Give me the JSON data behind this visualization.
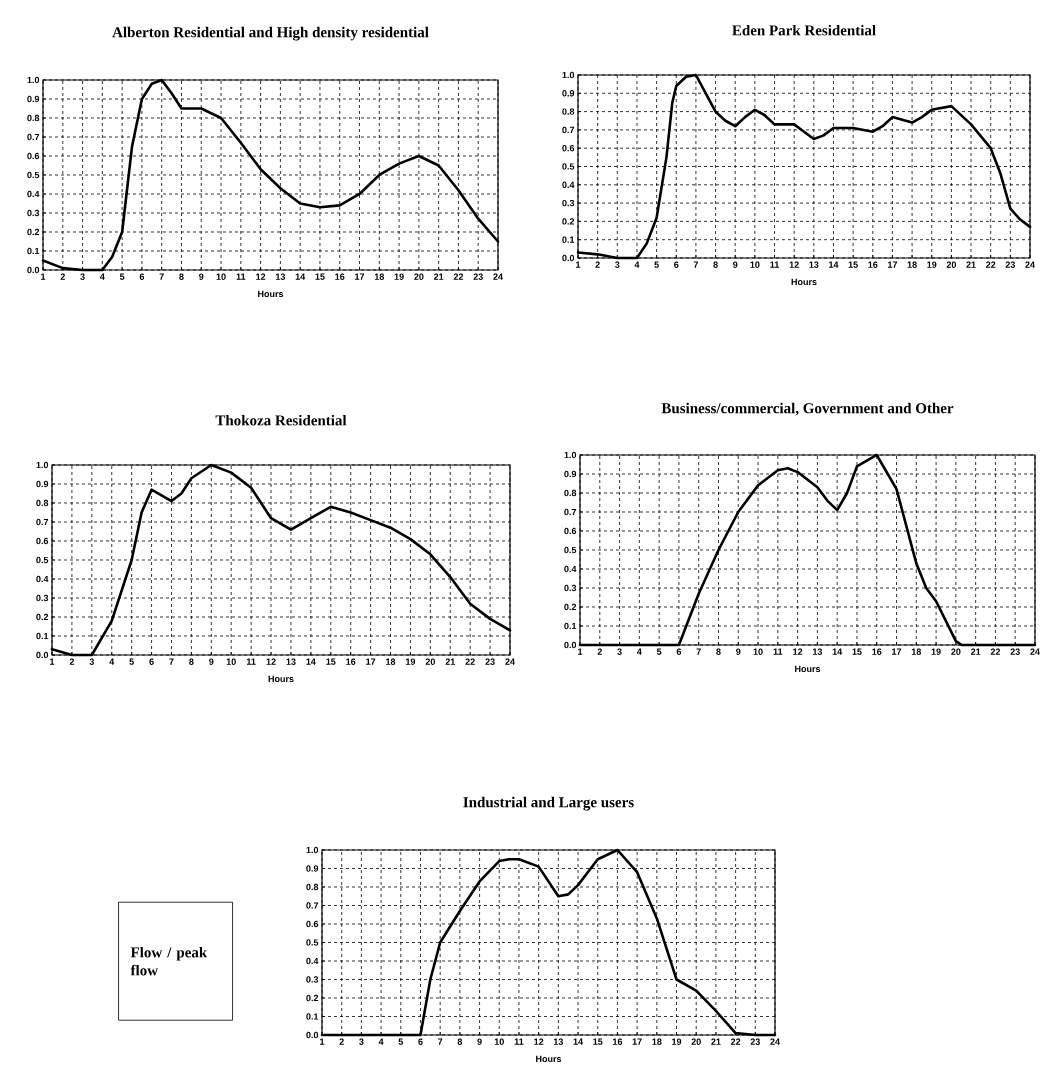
{
  "chart_data": [
    {
      "type": "line",
      "title": "Alberton Residential and High density residential",
      "xlabel": "Hours",
      "grid": true,
      "xlim": [
        1,
        24
      ],
      "ylim": [
        0,
        1
      ],
      "xticks": [
        1,
        2,
        3,
        4,
        5,
        6,
        7,
        8,
        9,
        10,
        11,
        12,
        13,
        14,
        15,
        16,
        17,
        18,
        19,
        20,
        21,
        22,
        23,
        24
      ],
      "yticks": [
        {
          "value": 0,
          "label": "0.0"
        },
        {
          "value": 0.1,
          "label": "0.1"
        },
        {
          "value": 0.2,
          "label": "0.2"
        },
        {
          "value": 0.3,
          "label": "0.3"
        },
        {
          "value": 0.4,
          "label": "0.4"
        },
        {
          "value": 0.5,
          "label": "0.5"
        },
        {
          "value": 0.6,
          "label": "0.6"
        },
        {
          "value": 0.7,
          "label": "0.7"
        },
        {
          "value": 0.8,
          "label": "0.8"
        },
        {
          "value": 0.9,
          "label": "0.9"
        },
        {
          "value": 1,
          "label": "1.0"
        }
      ],
      "series": [
        {
          "color": "#000000",
          "x": [
            1,
            2,
            3,
            4,
            4.5,
            5,
            5.5,
            6,
            6.5,
            7,
            7.5,
            8,
            8.5,
            9,
            10,
            11,
            12,
            13,
            14,
            15,
            16,
            17,
            18,
            19,
            20,
            21,
            22,
            23,
            24
          ],
          "values": [
            0.05,
            0.01,
            0.0,
            0.0,
            0.07,
            0.2,
            0.65,
            0.9,
            0.98,
            1.0,
            0.93,
            0.85,
            0.85,
            0.85,
            0.8,
            0.67,
            0.53,
            0.43,
            0.35,
            0.33,
            0.34,
            0.4,
            0.5,
            0.56,
            0.6,
            0.55,
            0.42,
            0.27,
            0.15
          ]
        }
      ]
    },
    {
      "type": "line",
      "title": "Eden Park Residential",
      "xlabel": "Hours",
      "grid": true,
      "xlim": [
        1,
        24
      ],
      "ylim": [
        0,
        1
      ],
      "xticks": [
        1,
        2,
        3,
        4,
        5,
        6,
        7,
        8,
        9,
        10,
        11,
        12,
        13,
        14,
        15,
        16,
        17,
        18,
        19,
        20,
        21,
        22,
        23,
        24
      ],
      "yticks": [
        {
          "value": 0,
          "label": "0.0"
        },
        {
          "value": 0.1,
          "label": "0.1"
        },
        {
          "value": 0.2,
          "label": "0.2"
        },
        {
          "value": 0.3,
          "label": "0.3"
        },
        {
          "value": 0.4,
          "label": "0.4"
        },
        {
          "value": 0.5,
          "label": "0.5"
        },
        {
          "value": 0.6,
          "label": "0.6"
        },
        {
          "value": 0.7,
          "label": "0.7"
        },
        {
          "value": 0.8,
          "label": "0.8"
        },
        {
          "value": 0.9,
          "label": "0.9"
        },
        {
          "value": 1,
          "label": "1.0"
        }
      ],
      "series": [
        {
          "color": "#000000",
          "x": [
            1,
            2,
            3,
            4,
            4.5,
            5,
            5.5,
            5.8,
            6,
            6.5,
            7,
            7.5,
            8,
            8.5,
            9,
            9.5,
            10,
            10.5,
            11,
            12,
            12.5,
            13,
            13.5,
            14,
            15,
            16,
            16.5,
            17,
            18,
            18.5,
            19,
            20,
            21,
            22,
            22.5,
            23,
            23.5,
            24
          ],
          "values": [
            0.03,
            0.02,
            0.0,
            0.0,
            0.08,
            0.22,
            0.55,
            0.85,
            0.94,
            0.99,
            1.0,
            0.9,
            0.8,
            0.75,
            0.72,
            0.77,
            0.81,
            0.78,
            0.73,
            0.73,
            0.69,
            0.65,
            0.67,
            0.71,
            0.71,
            0.69,
            0.72,
            0.77,
            0.74,
            0.77,
            0.81,
            0.83,
            0.73,
            0.6,
            0.46,
            0.27,
            0.21,
            0.17
          ]
        }
      ]
    },
    {
      "type": "line",
      "title": "Thokoza Residential",
      "xlabel": "Hours",
      "grid": true,
      "xlim": [
        1,
        24
      ],
      "ylim": [
        0,
        1
      ],
      "xticks": [
        1,
        2,
        3,
        4,
        5,
        6,
        7,
        8,
        9,
        10,
        11,
        12,
        13,
        14,
        15,
        16,
        17,
        18,
        19,
        20,
        21,
        22,
        23,
        24
      ],
      "yticks": [
        {
          "value": 0,
          "label": "0.0"
        },
        {
          "value": 0.1,
          "label": "0.1"
        },
        {
          "value": 0.2,
          "label": "0.2"
        },
        {
          "value": 0.3,
          "label": "0.3"
        },
        {
          "value": 0.4,
          "label": "0.4"
        },
        {
          "value": 0.5,
          "label": "0.5"
        },
        {
          "value": 0.6,
          "label": "0.6"
        },
        {
          "value": 0.7,
          "label": "0.7"
        },
        {
          "value": 0.8,
          "label": "0.8"
        },
        {
          "value": 0.9,
          "label": "0.9"
        },
        {
          "value": 1,
          "label": "1.0"
        }
      ],
      "series": [
        {
          "color": "#000000",
          "x": [
            1,
            2,
            3,
            4,
            5,
            5.5,
            6,
            6.5,
            7,
            7.5,
            8,
            9,
            10,
            11,
            12,
            13,
            14,
            15,
            16,
            17,
            18,
            19,
            20,
            21,
            22,
            23,
            24
          ],
          "values": [
            0.03,
            0.0,
            0.0,
            0.18,
            0.5,
            0.75,
            0.87,
            0.84,
            0.81,
            0.85,
            0.93,
            1.0,
            0.96,
            0.88,
            0.72,
            0.66,
            0.72,
            0.78,
            0.75,
            0.71,
            0.67,
            0.61,
            0.53,
            0.41,
            0.27,
            0.19,
            0.13
          ]
        }
      ]
    },
    {
      "type": "line",
      "title": "Business/commercial, Government and Other",
      "xlabel": "Hours",
      "grid": true,
      "xlim": [
        1,
        24
      ],
      "ylim": [
        0,
        1
      ],
      "xticks": [
        1,
        2,
        3,
        4,
        5,
        6,
        7,
        8,
        9,
        10,
        11,
        12,
        13,
        14,
        15,
        16,
        17,
        18,
        19,
        20,
        21,
        22,
        23,
        24
      ],
      "yticks": [
        {
          "value": 0,
          "label": "0.0"
        },
        {
          "value": 0.1,
          "label": "0.1"
        },
        {
          "value": 0.2,
          "label": "0.2"
        },
        {
          "value": 0.3,
          "label": "0.3"
        },
        {
          "value": 0.4,
          "label": "0.4"
        },
        {
          "value": 0.5,
          "label": "0.5"
        },
        {
          "value": 0.6,
          "label": "0.6"
        },
        {
          "value": 0.7,
          "label": "0.7"
        },
        {
          "value": 0.8,
          "label": "0.8"
        },
        {
          "value": 0.9,
          "label": "0.9"
        },
        {
          "value": 1,
          "label": "1.0"
        }
      ],
      "series": [
        {
          "color": "#000000",
          "x": [
            1,
            2,
            3,
            4,
            5,
            6,
            7,
            8,
            9,
            10,
            11,
            11.5,
            12,
            13,
            13.5,
            14,
            14.5,
            15,
            16,
            17,
            18,
            18.5,
            19,
            20,
            20.3,
            21,
            22,
            23,
            24
          ],
          "values": [
            0,
            0,
            0,
            0,
            0,
            0,
            0.27,
            0.5,
            0.7,
            0.84,
            0.92,
            0.93,
            0.91,
            0.83,
            0.76,
            0.71,
            0.8,
            0.94,
            1.0,
            0.82,
            0.43,
            0.3,
            0.23,
            0.02,
            0.0,
            0,
            0,
            0,
            0
          ]
        }
      ]
    },
    {
      "type": "line",
      "title": "Industrial and Large users",
      "xlabel": "Hours",
      "grid": true,
      "xlim": [
        1,
        24
      ],
      "ylim": [
        0,
        1
      ],
      "annotations": [
        "Flow / peak flow"
      ],
      "xticks": [
        1,
        2,
        3,
        4,
        5,
        6,
        7,
        8,
        9,
        10,
        11,
        12,
        13,
        14,
        15,
        16,
        17,
        18,
        19,
        20,
        21,
        22,
        23,
        24
      ],
      "yticks": [
        {
          "value": 0,
          "label": "0.0"
        },
        {
          "value": 0.1,
          "label": "0.1"
        },
        {
          "value": 0.2,
          "label": "0.2"
        },
        {
          "value": 0.3,
          "label": "0.3"
        },
        {
          "value": 0.4,
          "label": "0.4"
        },
        {
          "value": 0.5,
          "label": "0.5"
        },
        {
          "value": 0.6,
          "label": "0.6"
        },
        {
          "value": 0.7,
          "label": "0.7"
        },
        {
          "value": 0.8,
          "label": "0.8"
        },
        {
          "value": 0.9,
          "label": "0.9"
        },
        {
          "value": 1,
          "label": "1.0"
        }
      ],
      "series": [
        {
          "color": "#000000",
          "x": [
            1,
            2,
            3,
            4,
            5,
            6,
            6.5,
            7,
            8,
            9,
            10,
            10.5,
            11,
            12,
            13,
            13.5,
            14,
            15,
            16,
            17,
            18,
            19,
            20,
            21,
            22,
            23,
            24
          ],
          "values": [
            0,
            0,
            0,
            0,
            0,
            0,
            0.3,
            0.5,
            0.67,
            0.83,
            0.94,
            0.95,
            0.95,
            0.91,
            0.75,
            0.76,
            0.81,
            0.95,
            1.0,
            0.88,
            0.63,
            0.3,
            0.24,
            0.13,
            0.01,
            0,
            0
          ]
        }
      ]
    }
  ]
}
